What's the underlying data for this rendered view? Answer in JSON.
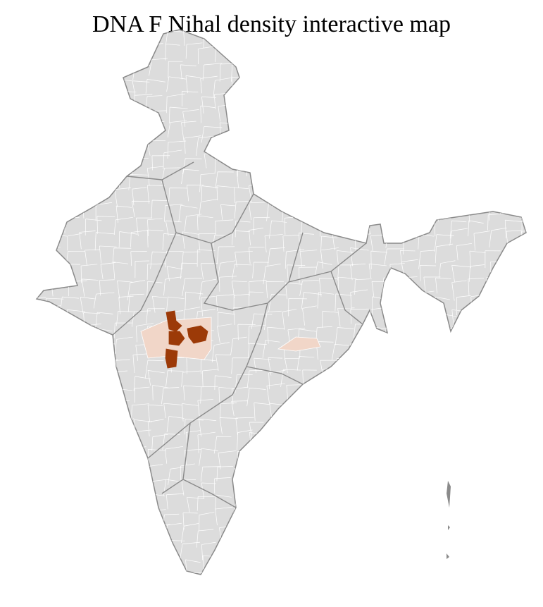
{
  "title": "DNA F Nihal density interactive map",
  "colors": {
    "land": "#dcdcdc",
    "district_border": "#ffffff",
    "state_border": "#8a8a8a",
    "high_density": "#9c3a08",
    "low_density": "#f1d6c8"
  }
}
